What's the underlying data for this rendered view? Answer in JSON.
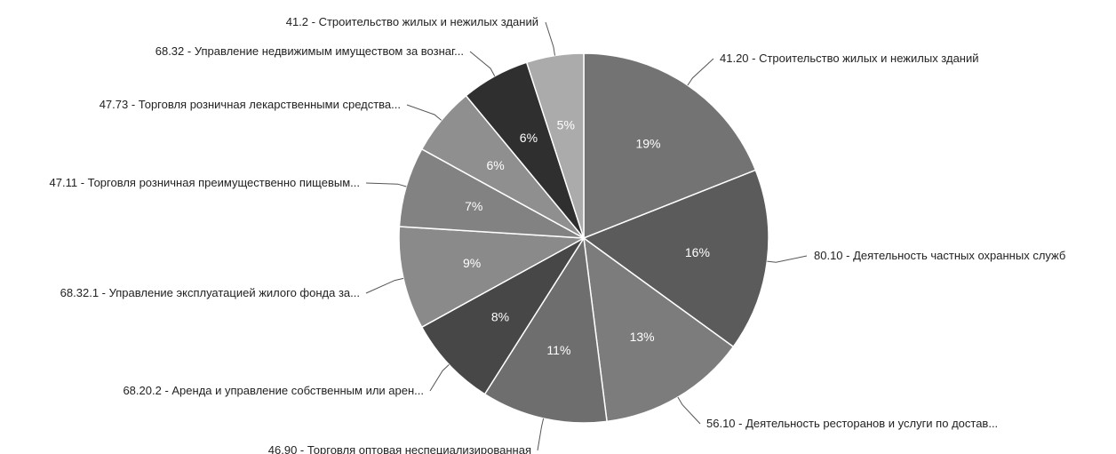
{
  "chart_data": {
    "type": "pie",
    "slices": [
      {
        "label": "41.20 - Строительство жилых и нежилых зданий",
        "value": 19,
        "value_label": "19%",
        "color": "#737373"
      },
      {
        "label": "80.10 - Деятельность частных охранных служб",
        "value": 16,
        "value_label": "16%",
        "color": "#5b5b5b"
      },
      {
        "label": "56.10 - Деятельность ресторанов и услуги по достав...",
        "value": 13,
        "value_label": "13%",
        "color": "#7c7c7c"
      },
      {
        "label": "46.90 - Торговля оптовая неспециализированная",
        "value": 11,
        "value_label": "11%",
        "color": "#6e6e6e"
      },
      {
        "label": "68.20.2 - Аренда и управление собственным или арен...",
        "value": 8,
        "value_label": "8%",
        "color": "#474747"
      },
      {
        "label": "68.32.1 - Управление эксплуатацией жилого фонда за...",
        "value": 9,
        "value_label": "9%",
        "color": "#8a8a8a"
      },
      {
        "label": "47.11 - Торговля розничная преимущественно пищевым...",
        "value": 7,
        "value_label": "7%",
        "color": "#828282"
      },
      {
        "label": "47.73 - Торговля розничная лекарственными средства...",
        "value": 6,
        "value_label": "6%",
        "color": "#8f8f8f"
      },
      {
        "label": "68.32 - Управление недвижимым имуществом за вознаг...",
        "value": 6,
        "value_label": "6%",
        "color": "#2f2f2f"
      },
      {
        "label": "41.2 - Строительство жилых и нежилых зданий",
        "value": 5,
        "value_label": "5%",
        "color": "#ababab"
      }
    ]
  }
}
